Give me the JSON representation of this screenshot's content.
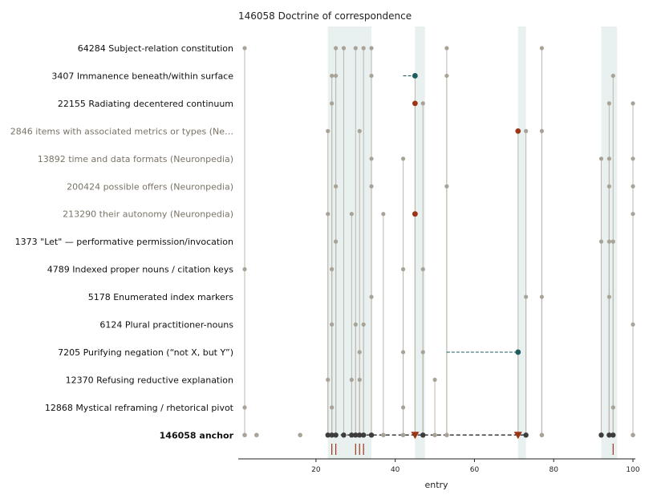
{
  "chart_data": {
    "type": "scatter",
    "title": "146058  Doctrine of correspondence",
    "xlabel": "entry",
    "xlim": [
      0,
      100
    ],
    "x_ticks": [
      20,
      40,
      60,
      80,
      100
    ],
    "grid": false,
    "bands": [
      [
        23,
        34
      ],
      [
        45,
        47.5
      ],
      [
        71,
        73
      ],
      [
        92,
        96
      ]
    ],
    "rows": [
      {
        "label": "64284  Subject-relation constitution",
        "muted": false,
        "bold": false,
        "points": [
          2,
          25,
          27,
          30,
          32,
          34,
          53,
          77
        ],
        "highlights": []
      },
      {
        "label": "3407  Immanence beneath/within surface",
        "muted": false,
        "bold": false,
        "points": [
          24,
          25,
          34,
          53,
          95
        ],
        "highlights": [
          {
            "x": 45,
            "color": "teal",
            "from": 42
          }
        ]
      },
      {
        "label": "22155  Radiating decentered continuum",
        "muted": false,
        "bold": false,
        "points": [
          24,
          47,
          94,
          100
        ],
        "highlights": [
          {
            "x": 45,
            "color": "red"
          }
        ]
      },
      {
        "label": "2846  items with associated metrics or types (Ne…",
        "muted": true,
        "bold": false,
        "points": [
          23,
          31,
          73,
          77
        ],
        "highlights": [
          {
            "x": 71,
            "color": "red"
          }
        ]
      },
      {
        "label": "13892  time and data formats (Neuronpedia)",
        "muted": true,
        "bold": false,
        "points": [
          34,
          42,
          92,
          94,
          100
        ],
        "highlights": []
      },
      {
        "label": "200424  possible offers (Neuronpedia)",
        "muted": true,
        "bold": false,
        "points": [
          25,
          34,
          53,
          94,
          100
        ],
        "highlights": []
      },
      {
        "label": "213290  their autonomy (Neuronpedia)",
        "muted": true,
        "bold": false,
        "points": [
          23,
          29,
          37,
          100
        ],
        "highlights": [
          {
            "x": 45,
            "color": "red"
          }
        ]
      },
      {
        "label": "1373  \"Let\" — performative permission/invocation",
        "muted": false,
        "bold": false,
        "points": [
          25,
          92,
          94,
          95
        ],
        "highlights": []
      },
      {
        "label": "4789  Indexed proper nouns / citation keys",
        "muted": false,
        "bold": false,
        "points": [
          2,
          24,
          42,
          47
        ],
        "highlights": []
      },
      {
        "label": "5178  Enumerated index markers",
        "muted": false,
        "bold": false,
        "points": [
          34,
          73,
          77,
          94
        ],
        "highlights": []
      },
      {
        "label": "6124  Plural practitioner-nouns",
        "muted": false,
        "bold": false,
        "points": [
          24,
          30,
          32,
          100
        ],
        "highlights": []
      },
      {
        "label": "7205  Purifying negation (“not X, but Y”)",
        "muted": false,
        "bold": false,
        "points": [
          31,
          42,
          47
        ],
        "highlights": [
          {
            "x": 71,
            "color": "teal",
            "from": 53
          }
        ]
      },
      {
        "label": "12370  Refusing reductive explanation",
        "muted": false,
        "bold": false,
        "points": [
          23,
          29,
          31,
          50
        ],
        "highlights": []
      },
      {
        "label": "12868  Mystical reframing / rhetorical pivot",
        "muted": false,
        "bold": false,
        "points": [
          2,
          24,
          42,
          95
        ],
        "highlights": []
      },
      {
        "label": "146058  anchor",
        "muted": false,
        "bold": true,
        "points_light": [
          2,
          5,
          16,
          37,
          42,
          50,
          53,
          77,
          100
        ],
        "points_dark": [
          23,
          24,
          25,
          27,
          29,
          30,
          31,
          32,
          34,
          47,
          73,
          92,
          94,
          95
        ],
        "triangles": [
          45,
          71
        ],
        "dashed_from": 23,
        "dashed_to": 73,
        "rug": [
          24,
          25,
          30,
          31,
          32,
          95
        ]
      }
    ],
    "colors": {
      "light": "#a8a396",
      "dark": "#3c3c3c",
      "red": "#9c3516",
      "teal": "#1f5c5c",
      "band": "#e8f0f0",
      "muted_text": "#7a7466",
      "rug": "#9c3516"
    }
  }
}
